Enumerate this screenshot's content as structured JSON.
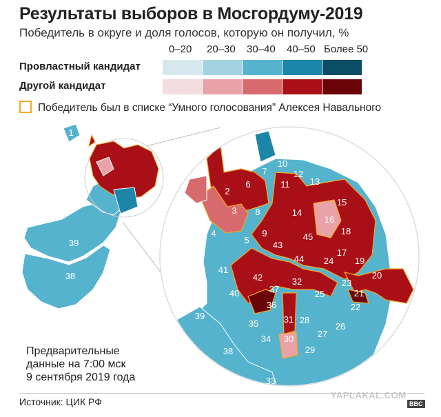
{
  "title": "Результаты выборов в Мосгордуму-2019",
  "subtitle": "Победитель в округе и доля голосов, которую он получил, %",
  "legend": {
    "ranges": [
      "0–20",
      "20–30",
      "30–40",
      "40–50",
      "Более 50"
    ],
    "rows": [
      {
        "label": "Провластный кандидат",
        "colors": [
          "#d5e8ee",
          "#a4d2e0",
          "#56b3cd",
          "#1c86a8",
          "#0c4d66"
        ]
      },
      {
        "label": "Другой кандидат",
        "colors": [
          "#f4dde0",
          "#e9a3a8",
          "#d86a6e",
          "#a80f17",
          "#6a0408"
        ]
      }
    ],
    "navalny_note": "Победитель был в списке “Умного голосования” Алексея Навального",
    "navalny_color": "#f5a623"
  },
  "districts": {
    "small_map": [
      "1",
      "39",
      "38"
    ],
    "zoom_map": [
      "2",
      "3",
      "4",
      "5",
      "6",
      "7",
      "8",
      "9",
      "10",
      "11",
      "12",
      "13",
      "14",
      "15",
      "16",
      "17",
      "18",
      "19",
      "20",
      "21",
      "22",
      "23",
      "24",
      "25",
      "26",
      "27",
      "28",
      "29",
      "30",
      "31",
      "32",
      "33",
      "34",
      "35",
      "36",
      "37",
      "38",
      "39",
      "40",
      "41",
      "42",
      "43",
      "44",
      "45"
    ]
  },
  "note": [
    "Предварительные",
    "данные на 7:00 мск",
    "9 сентября 2019 года"
  ],
  "source": "Источник: ЦИК РФ",
  "watermark": "YAPLAKAL.COM",
  "bbc_logo": "BBC"
}
